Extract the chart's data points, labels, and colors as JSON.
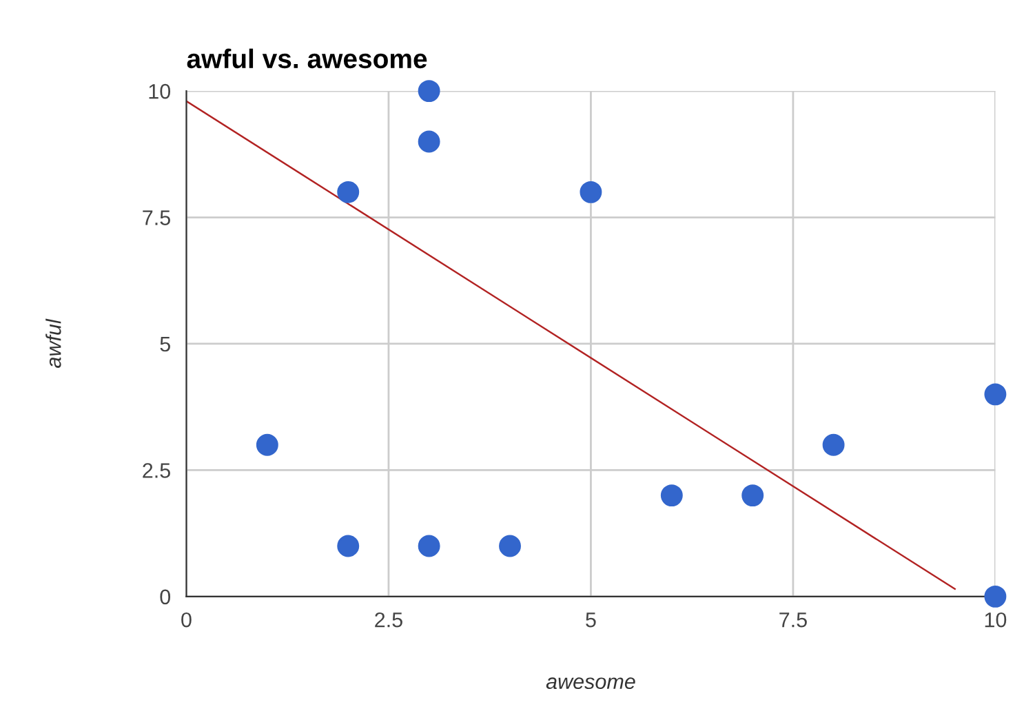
{
  "chart_data": {
    "type": "scatter",
    "title": "awful vs. awesome",
    "xlabel": "awesome",
    "ylabel": "awful",
    "xlim": [
      0,
      10
    ],
    "ylim": [
      0,
      10
    ],
    "xticks": [
      0,
      2.5,
      5,
      7.5,
      10
    ],
    "yticks": [
      0,
      2.5,
      5,
      7.5,
      10
    ],
    "grid": true,
    "legend": false,
    "marker": "circle",
    "series": [
      {
        "color": "#3366cc",
        "x": [
          1,
          2,
          2,
          3,
          3,
          3,
          4,
          5,
          6,
          7,
          8,
          10,
          10
        ],
        "values": [
          3,
          8,
          1,
          10,
          9,
          1,
          1,
          8,
          2,
          2,
          3,
          4,
          0
        ]
      },
      {
        "type": "line",
        "color": "#b22222",
        "x": [
          0,
          9.5
        ],
        "values": [
          9.8,
          0.15
        ],
        "marker": "none"
      }
    ]
  }
}
